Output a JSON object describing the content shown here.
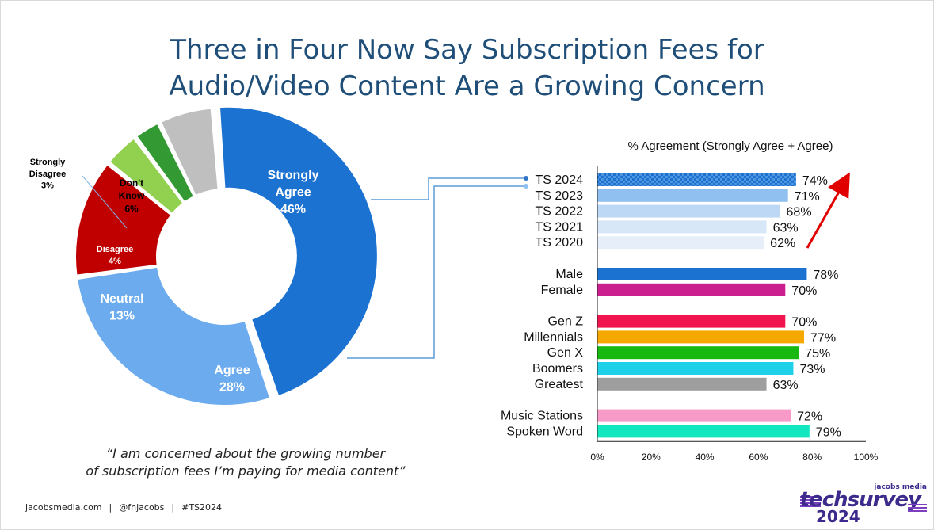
{
  "title_line1": "Three in Four Now Say Subscription Fees for",
  "title_line2": "Audio/Video Content Are a Growing Concern",
  "quote_line1": "“I am concerned about the growing number",
  "quote_line2": "of subscription fees I’m paying for media content”",
  "footer": {
    "site": "jacobsmedia.com",
    "handle": "@fnjacobs",
    "tag": "#TS2024"
  },
  "logo": {
    "small": "jacobs media",
    "main": "techsurvey",
    "year": "2024"
  },
  "chart_data": [
    {
      "type": "pie",
      "donut": true,
      "slices": [
        {
          "label": "Strongly Agree",
          "value": 46,
          "display": "46%",
          "color": "#1b72d1",
          "label_color": "#ffffff"
        },
        {
          "label": "Agree",
          "value": 28,
          "display": "28%",
          "color": "#6cabee",
          "label_color": "#ffffff"
        },
        {
          "label": "Neutral",
          "value": 13,
          "display": "13%",
          "color": "#c00000",
          "label_color": "#ffffff"
        },
        {
          "label": "Disagree",
          "value": 4,
          "display": "4%",
          "color": "#92d050",
          "label_color": "#ffffff"
        },
        {
          "label": "Strongly Disagree",
          "value": 3,
          "display": "3%",
          "color": "#339933",
          "label_color": "#000000"
        },
        {
          "label": "Don't Know",
          "value": 6,
          "display": "6%",
          "color": "#bfbfbf",
          "label_color": "#000000"
        }
      ]
    },
    {
      "type": "bar",
      "orientation": "horizontal",
      "title": "% Agreement (Strongly Agree + Agree)",
      "xlim": [
        0,
        100
      ],
      "ticks": [
        "0%",
        "20%",
        "40%",
        "60%",
        "80%",
        "100%"
      ],
      "groups": [
        [
          {
            "label": "TS 2024",
            "value": 74,
            "display": "74%",
            "color": "#1b72d1",
            "pattern": true
          },
          {
            "label": "TS 2023",
            "value": 71,
            "display": "71%",
            "color": "#8fc0f0"
          },
          {
            "label": "TS 2022",
            "value": 68,
            "display": "68%",
            "color": "#bcd8f5"
          },
          {
            "label": "TS 2021",
            "value": 63,
            "display": "63%",
            "color": "#d7e7f8"
          },
          {
            "label": "TS 2020",
            "value": 62,
            "display": "62%",
            "color": "#e6eff9"
          }
        ],
        [
          {
            "label": "Male",
            "value": 78,
            "display": "78%",
            "color": "#1b72d1"
          },
          {
            "label": "Female",
            "value": 70,
            "display": "70%",
            "color": "#cc1f8f"
          }
        ],
        [
          {
            "label": "Gen Z",
            "value": 70,
            "display": "70%",
            "color": "#f2144e"
          },
          {
            "label": "Millennials",
            "value": 77,
            "display": "77%",
            "color": "#f5a800"
          },
          {
            "label": "Gen X",
            "value": 75,
            "display": "75%",
            "color": "#17b80f"
          },
          {
            "label": "Boomers",
            "value": 73,
            "display": "73%",
            "color": "#1fd1e8"
          },
          {
            "label": "Greatest",
            "value": 63,
            "display": "63%",
            "color": "#9e9e9e"
          }
        ],
        [
          {
            "label": "Music Stations",
            "value": 72,
            "display": "72%",
            "color": "#f79ac7"
          },
          {
            "label": "Spoken Word",
            "value": 79,
            "display": "79%",
            "color": "#12e8c0"
          }
        ]
      ],
      "trend_arrow_color": "#e00000",
      "connector_color": "#5b9bd5"
    }
  ]
}
